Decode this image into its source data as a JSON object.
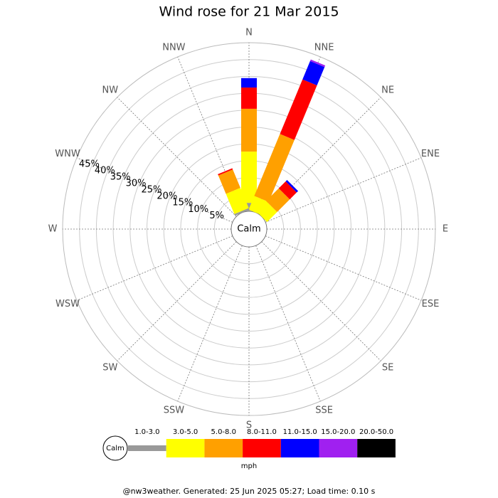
{
  "chart_data": {
    "type": "windrose",
    "title": "Wind rose for 21 Mar 2015",
    "categories": [
      "N",
      "NNE",
      "NE",
      "ENE",
      "E",
      "ESE",
      "SE",
      "SSE",
      "S",
      "SSW",
      "SW",
      "WSW",
      "W",
      "WNW",
      "NW",
      "NNW"
    ],
    "center_label": "Calm",
    "rlim": [
      0,
      50
    ],
    "rticks": [
      {
        "value": 5,
        "label": "5%"
      },
      {
        "value": 10,
        "label": "10%"
      },
      {
        "value": 15,
        "label": "15%"
      },
      {
        "value": 20,
        "label": "20%"
      },
      {
        "value": 25,
        "label": "25%"
      },
      {
        "value": 30,
        "label": "30%"
      },
      {
        "value": 35,
        "label": "35%"
      },
      {
        "value": 40,
        "label": "40%"
      },
      {
        "value": 45,
        "label": "45%"
      }
    ],
    "series": [
      {
        "name": "1.0-3.0",
        "color": "#999999",
        "values": [
          2.5,
          0,
          0,
          0,
          0,
          0,
          0,
          0,
          0,
          0,
          0,
          0,
          0,
          0,
          0,
          0.5
        ]
      },
      {
        "name": "3.0-5.0",
        "color": "#ffff00",
        "values": [
          15.2,
          4.4,
          4.2,
          0,
          0,
          0,
          0,
          0,
          0,
          0,
          0,
          0,
          0,
          0,
          0,
          6.5
        ]
      },
      {
        "name": "5.0-8.0",
        "color": "#ffa000",
        "values": [
          12.7,
          19.9,
          5.3,
          0,
          0,
          0,
          0,
          0,
          0,
          0,
          0,
          0,
          0,
          0,
          0,
          5.9
        ]
      },
      {
        "name": "8.0-11.0",
        "color": "#ff0000",
        "values": [
          6.3,
          17.5,
          2.9,
          0,
          0,
          0,
          0,
          0,
          0,
          0,
          0,
          0,
          0,
          0,
          0,
          0.4
        ]
      },
      {
        "name": "11.0-15.0",
        "color": "#0000ff",
        "values": [
          2.8,
          5.9,
          0.6,
          0,
          0,
          0,
          0,
          0,
          0,
          0,
          0,
          0,
          0,
          0,
          0,
          0
        ]
      },
      {
        "name": "15.0-20.0",
        "color": "#a020f0",
        "values": [
          0,
          0.5,
          0,
          0,
          0,
          0,
          0,
          0,
          0,
          0,
          0,
          0,
          0,
          0,
          0,
          0
        ]
      },
      {
        "name": "20.0-50.0",
        "color": "#000000",
        "values": [
          0,
          0,
          0,
          0,
          0,
          0,
          0,
          0,
          0,
          0,
          0,
          0,
          0,
          0,
          0,
          0
        ]
      }
    ],
    "legend_calm": "Calm",
    "legend_unit": "mph",
    "footer": "@nw3weather. Generated: 25 Jun 2025 05:27; Load time: 0.10 s"
  }
}
